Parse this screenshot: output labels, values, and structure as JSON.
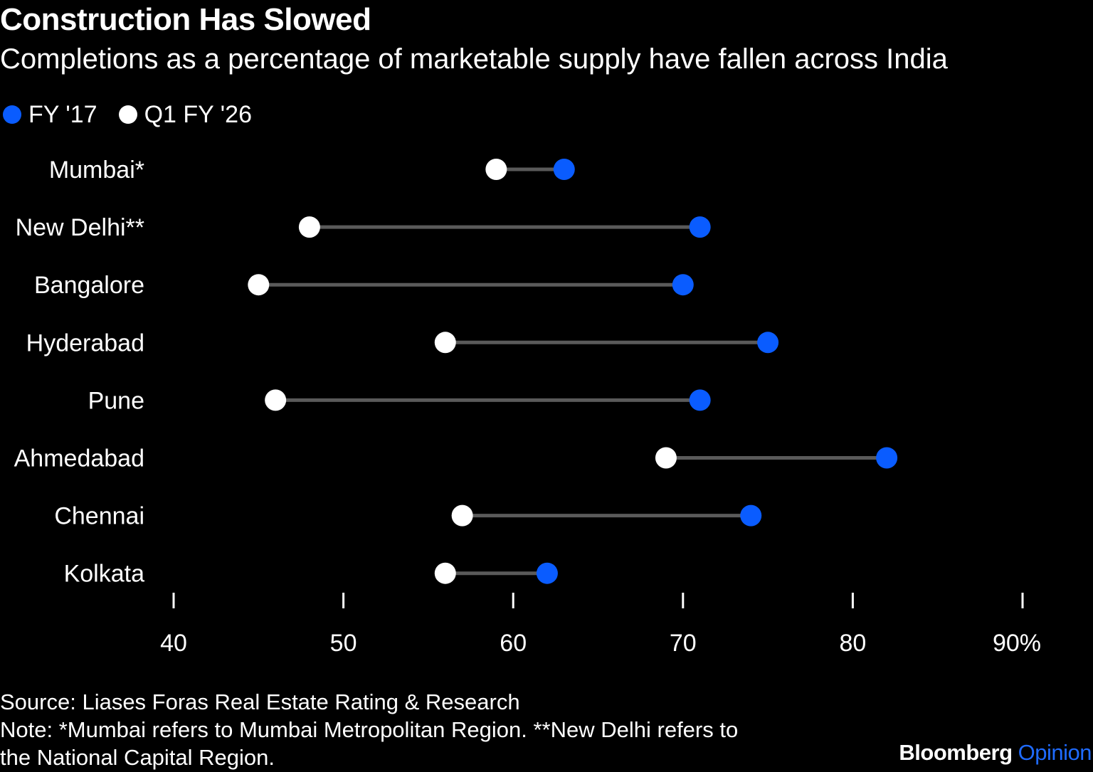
{
  "title": "Construction Has Slowed",
  "subtitle": "Completions as a percentage of marketable supply have fallen across India",
  "legend": [
    {
      "label": "FY '17",
      "color": "#0a5cff"
    },
    {
      "label": "Q1 FY '26",
      "color": "#ffffff"
    }
  ],
  "chart_data": {
    "type": "dumbbell",
    "categories": [
      "Mumbai*",
      "New Delhi**",
      "Bangalore",
      "Hyderabad",
      "Pune",
      "Ahmedabad",
      "Chennai",
      "Kolkata"
    ],
    "series": [
      {
        "name": "FY '17",
        "values": [
          63,
          71,
          70,
          75,
          71,
          82,
          74,
          62
        ]
      },
      {
        "name": "Q1 FY '26",
        "values": [
          59,
          48,
          45,
          56,
          46,
          69,
          57,
          56
        ]
      }
    ],
    "xticks": [
      "40",
      "50",
      "60",
      "70",
      "80",
      "90%"
    ],
    "xlim": [
      40,
      90
    ],
    "grid": false
  },
  "colors": {
    "background": "#000000",
    "connector": "#5a5a5a",
    "fy17": "#0a5cff",
    "q1fy26": "#ffffff",
    "tick": "#ffffff"
  },
  "footer": {
    "source": "Source: Liases Foras Real Estate Rating & Research",
    "note_line1": "Note: *Mumbai refers to Mumbai Metropolitan Region. **New Delhi refers to",
    "note_line2": "the National Capital Region."
  },
  "brand": {
    "name": "Bloomberg",
    "section": "Opinion"
  }
}
